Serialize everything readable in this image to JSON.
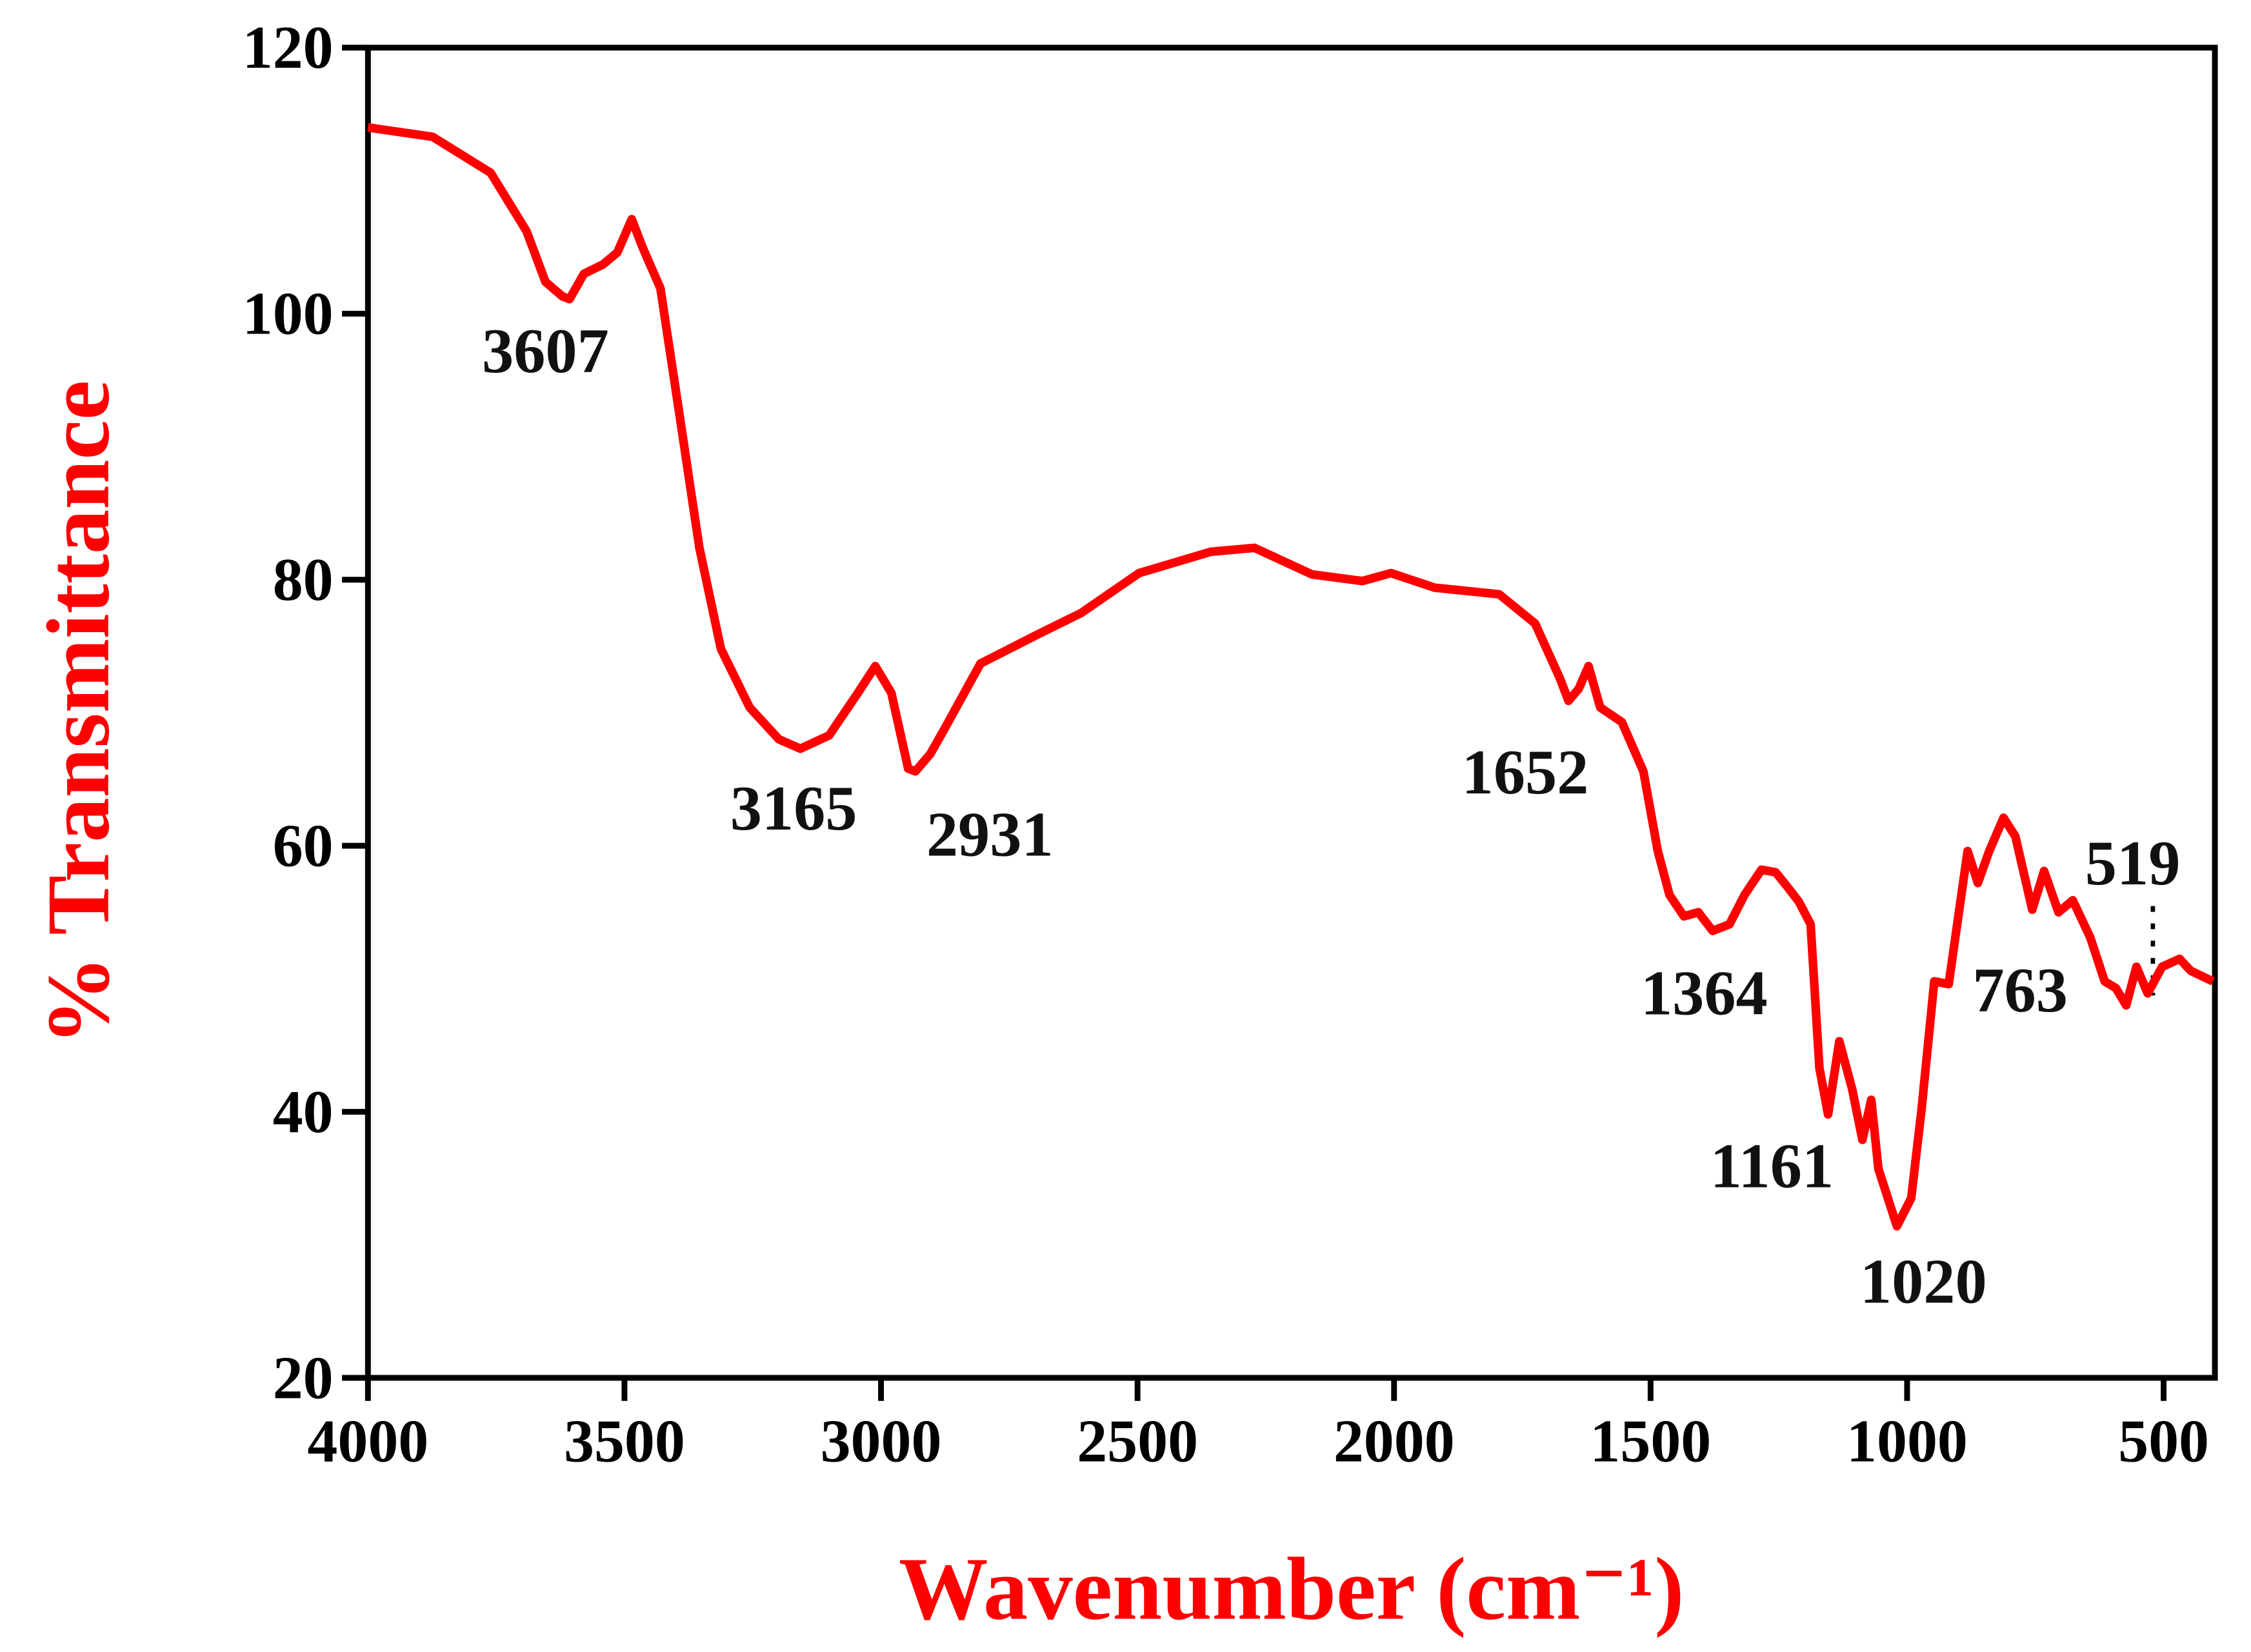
{
  "chart_data": {
    "type": "line",
    "x_label": "Wavenumber (cm⁻¹)",
    "y_label": "% Transmittance",
    "color": "#ff0000",
    "x": [
      4000,
      3874,
      3761,
      3691,
      3654,
      3621,
      3607,
      3579,
      3542,
      3514,
      3486,
      3466,
      3430,
      3396,
      3354,
      3312,
      3256,
      3199,
      3157,
      3101,
      3045,
      3011,
      2980,
      2947,
      2933,
      2904,
      2876,
      2806,
      2694,
      2610,
      2497,
      2357,
      2272,
      2160,
      2062,
      2006,
      1921,
      1795,
      1725,
      1677,
      1660,
      1640,
      1621,
      1598,
      1556,
      1514,
      1486,
      1463,
      1435,
      1407,
      1379,
      1346,
      1317,
      1284,
      1256,
      1233,
      1211,
      1188,
      1171,
      1154,
      1132,
      1107,
      1087,
      1070,
      1056,
      1020,
      992,
      972,
      947,
      919,
      882,
      862,
      840,
      812,
      789,
      756,
      733,
      705,
      677,
      643,
      615,
      593,
      573,
      553,
      531,
      503,
      469,
      447,
      404
    ],
    "values": [
      114.0,
      113.3,
      110.6,
      106.2,
      102.4,
      101.3,
      101.1,
      103.0,
      103.7,
      104.6,
      107.1,
      105.1,
      101.9,
      93.2,
      82.4,
      74.8,
      70.4,
      68.0,
      67.3,
      68.3,
      71.5,
      73.5,
      71.5,
      65.8,
      65.6,
      66.9,
      68.8,
      73.7,
      75.9,
      77.5,
      80.5,
      82.1,
      82.4,
      80.4,
      79.9,
      80.5,
      79.4,
      78.9,
      76.7,
      72.6,
      70.9,
      71.8,
      73.5,
      70.4,
      69.3,
      65.6,
      59.6,
      56.3,
      54.7,
      55.0,
      53.6,
      54.1,
      56.3,
      58.2,
      58.0,
      56.9,
      55.8,
      54.1,
      43.3,
      39.8,
      45.3,
      41.7,
      37.9,
      40.9,
      35.7,
      31.4,
      33.5,
      40.1,
      49.8,
      49.6,
      59.6,
      57.2,
      59.6,
      62.1,
      60.7,
      55.2,
      58.1,
      55.0,
      55.9,
      53.1,
      49.8,
      49.3,
      48.0,
      50.9,
      48.9,
      50.9,
      51.5,
      50.6,
      49.8
    ],
    "xlim": [
      4000,
      400
    ],
    "ylim": [
      20,
      120
    ],
    "xticks": [
      4000,
      3500,
      3000,
      2500,
      2000,
      1500,
      1000,
      500
    ],
    "yticks": [
      20,
      40,
      60,
      80,
      100,
      120
    ],
    "annotations": [
      "3607",
      "3165",
      "2931",
      "1652",
      "1364",
      "1161",
      "1020",
      "763",
      "519"
    ]
  }
}
